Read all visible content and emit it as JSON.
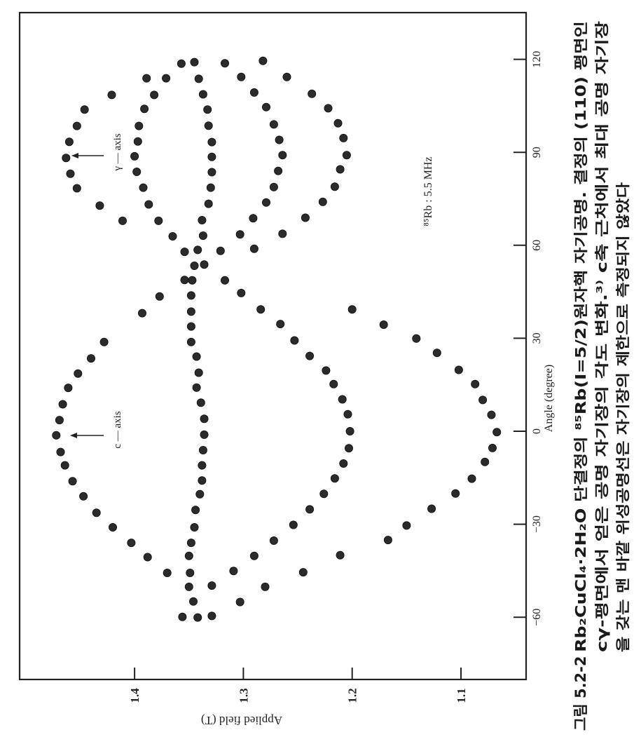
{
  "chart_data": {
    "type": "scatter",
    "xlabel": "Angle (degree)",
    "ylabel": "Applied field (T)",
    "orientation": "rotated 90 degrees counter-clockwise",
    "xlim": [
      -80,
      135
    ],
    "ylim": [
      1.04,
      1.506
    ],
    "xticks": [
      -60,
      -30,
      0,
      30,
      60,
      90,
      120
    ],
    "xtick_labels": [
      "−60",
      "−30",
      "0",
      "30",
      "60",
      "90",
      "120"
    ],
    "yticks": [
      1.1,
      1.2,
      1.3,
      1.4
    ],
    "ytick_labels": [
      "1.1",
      "1.2",
      "1.3",
      "1.4"
    ],
    "grid": false,
    "marker_color": "#2b2b2b",
    "annotations": {
      "c_axis": "c — axis",
      "gamma_axis": "γ — axis",
      "frequency": "⁸⁵Rb : 5.5 MHz"
    },
    "points": [
      [
        28.8,
        1.428
      ],
      [
        23.5,
        1.44
      ],
      [
        18.6,
        1.452
      ],
      [
        14.0,
        1.461
      ],
      [
        8.7,
        1.466
      ],
      [
        3.6,
        1.469
      ],
      [
        -1.3,
        1.472
      ],
      [
        -6.7,
        1.468
      ],
      [
        -11.0,
        1.464
      ],
      [
        -16.1,
        1.457
      ],
      [
        -21.0,
        1.447
      ],
      [
        -26.3,
        1.435
      ],
      [
        -31.0,
        1.42
      ],
      [
        -36.0,
        1.403
      ],
      [
        -40.6,
        1.388
      ],
      [
        -45.7,
        1.37
      ],
      [
        -59.9,
        1.356
      ],
      [
        38.1,
        1.393
      ],
      [
        43.5,
        1.377
      ],
      [
        48.8,
        1.354
      ],
      [
        43.8,
        1.348
      ],
      [
        38.6,
        1.348
      ],
      [
        33.8,
        1.348
      ],
      [
        28.8,
        1.348
      ],
      [
        24.1,
        1.343
      ],
      [
        18.9,
        1.341
      ],
      [
        14.1,
        1.343
      ],
      [
        9.2,
        1.339
      ],
      [
        4.0,
        1.336
      ],
      [
        -1.1,
        1.336
      ],
      [
        -6.1,
        1.337
      ],
      [
        -11.0,
        1.338
      ],
      [
        -15.9,
        1.338
      ],
      [
        -20.3,
        1.34
      ],
      [
        -25.4,
        1.344
      ],
      [
        -31.0,
        1.345
      ],
      [
        -36.0,
        1.348
      ],
      [
        -40.2,
        1.35
      ],
      [
        -45.7,
        1.349
      ],
      [
        -50.2,
        1.35
      ],
      [
        -54.9,
        1.346
      ],
      [
        -60.1,
        1.342
      ],
      [
        48.7,
        1.347
      ],
      [
        53.4,
        1.345
      ],
      [
        58.5,
        1.342
      ],
      [
        -49.8,
        1.329
      ],
      [
        -59.6,
        1.329
      ],
      [
        53.8,
        1.336
      ],
      [
        58.2,
        1.321
      ],
      [
        48.7,
        1.317
      ],
      [
        58.9,
        1.29
      ],
      [
        44.6,
        1.302
      ],
      [
        39.3,
        1.284
      ],
      [
        34.6,
        1.266
      ],
      [
        29.3,
        1.253
      ],
      [
        24.3,
        1.239
      ],
      [
        19.6,
        1.224
      ],
      [
        15.2,
        1.217
      ],
      [
        10.3,
        1.209
      ],
      [
        5.5,
        1.204
      ],
      [
        0,
        1.202
      ],
      [
        -5.5,
        1.203
      ],
      [
        -10.4,
        1.208
      ],
      [
        -15.2,
        1.216
      ],
      [
        -20.2,
        1.226
      ],
      [
        -25.2,
        1.239
      ],
      [
        -30.2,
        1.254
      ],
      [
        -35.3,
        1.272
      ],
      [
        -40.2,
        1.29
      ],
      [
        -45.1,
        1.309
      ],
      [
        39.3,
        1.2
      ],
      [
        34.4,
        1.171
      ],
      [
        29.9,
        1.141
      ],
      [
        25.3,
        1.122
      ],
      [
        19.8,
        1.102
      ],
      [
        15.2,
        1.087
      ],
      [
        10.1,
        1.08
      ],
      [
        5.3,
        1.072
      ],
      [
        -0.3,
        1.067
      ],
      [
        -5.4,
        1.071
      ],
      [
        -9.9,
        1.078
      ],
      [
        -15.3,
        1.09
      ],
      [
        -20.1,
        1.105
      ],
      [
        -25.0,
        1.127
      ],
      [
        -30.4,
        1.15
      ],
      [
        -35.1,
        1.167
      ],
      [
        -40.0,
        1.211
      ],
      [
        -45.5,
        1.245
      ],
      [
        -50.2,
        1.28
      ],
      [
        -55.1,
        1.303
      ],
      [
        88.2,
        1.463
      ],
      [
        93.4,
        1.46
      ],
      [
        98.5,
        1.453
      ],
      [
        103.8,
        1.446
      ],
      [
        108.5,
        1.421
      ],
      [
        83.1,
        1.459
      ],
      [
        78.4,
        1.453
      ],
      [
        72.8,
        1.432
      ],
      [
        67.9,
        1.411
      ],
      [
        62.9,
        1.365
      ],
      [
        57.9,
        1.354
      ],
      [
        113.9,
        1.389
      ],
      [
        118.6,
        1.357
      ],
      [
        93.5,
        1.397
      ],
      [
        88.7,
        1.4
      ],
      [
        83.7,
        1.398
      ],
      [
        98.5,
        1.396
      ],
      [
        104.0,
        1.391
      ],
      [
        108.5,
        1.382
      ],
      [
        113.9,
        1.371
      ],
      [
        119.1,
        1.345
      ],
      [
        78.6,
        1.392
      ],
      [
        73.2,
        1.387
      ],
      [
        67.9,
        1.378
      ],
      [
        93.3,
        1.329
      ],
      [
        88.5,
        1.329
      ],
      [
        83.6,
        1.329
      ],
      [
        78.6,
        1.33
      ],
      [
        73.4,
        1.332
      ],
      [
        68.1,
        1.338
      ],
      [
        63.1,
        1.337
      ],
      [
        98.6,
        1.332
      ],
      [
        103.8,
        1.333
      ],
      [
        108.7,
        1.337
      ],
      [
        113.7,
        1.341
      ],
      [
        118.7,
        1.317
      ],
      [
        89.1,
        1.264
      ],
      [
        94.0,
        1.267
      ],
      [
        84.0,
        1.268
      ],
      [
        99.0,
        1.272
      ],
      [
        78.8,
        1.272
      ],
      [
        104.6,
        1.279
      ],
      [
        73.8,
        1.279
      ],
      [
        109.3,
        1.29
      ],
      [
        68.7,
        1.291
      ],
      [
        114.3,
        1.302
      ],
      [
        63.5,
        1.303
      ],
      [
        119.5,
        1.282
      ],
      [
        89.1,
        1.205
      ],
      [
        94.6,
        1.208
      ],
      [
        84.5,
        1.211
      ],
      [
        99.4,
        1.213
      ],
      [
        78.9,
        1.216
      ],
      [
        104.2,
        1.222
      ],
      [
        74.0,
        1.227
      ],
      [
        108.9,
        1.237
      ],
      [
        68.9,
        1.243
      ],
      [
        114.3,
        1.26
      ],
      [
        63.7,
        1.264
      ]
    ]
  },
  "caption": {
    "figure_number": "그림 5.2-2",
    "line1": "Rb₂CuCl₄·2H₂O 단결정의 ⁸⁵Rb(I=5/2)원자핵 자기공명. 결정의 (110) 평면인",
    "line2": "cγ-평면에서 얻은 공명 자기장의 각도 변화.³⁾ c축 근처에서 최대 공명 자기장",
    "line3": "을 갖는 맨 바깥 위성공명선은 자기장의 제한으로 측정되지 않았다"
  }
}
